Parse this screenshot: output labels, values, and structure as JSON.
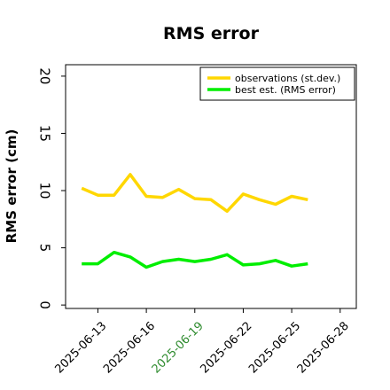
{
  "chart_data": {
    "type": "line",
    "title": "RMS error",
    "xlabel": "",
    "ylabel": "RMS error (cm)",
    "ylim": [
      -0.3,
      21
    ],
    "y_ticks": [
      "0",
      "5",
      "10",
      "15",
      "20"
    ],
    "x_ticks": [
      "2025-06-13",
      "2025-06-16",
      "2025-06-19",
      "2025-06-22",
      "2025-06-25",
      "2025-06-28"
    ],
    "highlight_tick": "2025-06-19",
    "highlight_color": "#2e8b2e",
    "grid": false,
    "legend_position": "top-right",
    "x": [
      "2025-06-12",
      "2025-06-13",
      "2025-06-14",
      "2025-06-15",
      "2025-06-16",
      "2025-06-17",
      "2025-06-18",
      "2025-06-19",
      "2025-06-20",
      "2025-06-21",
      "2025-06-22",
      "2025-06-23",
      "2025-06-24",
      "2025-06-25",
      "2025-06-26"
    ],
    "series": [
      {
        "name": "observations (st.dev.)",
        "color": "#ffd700",
        "values": [
          10.2,
          9.6,
          9.6,
          11.4,
          9.5,
          9.4,
          10.1,
          9.3,
          9.2,
          8.2,
          9.7,
          9.2,
          8.8,
          9.5,
          9.2
        ]
      },
      {
        "name": "best est. (RMS error)",
        "color": "#00ee00",
        "values": [
          3.6,
          3.6,
          4.6,
          4.2,
          3.3,
          3.8,
          4.0,
          3.8,
          4.0,
          4.4,
          3.5,
          3.6,
          3.9,
          3.4,
          3.6
        ]
      }
    ]
  }
}
